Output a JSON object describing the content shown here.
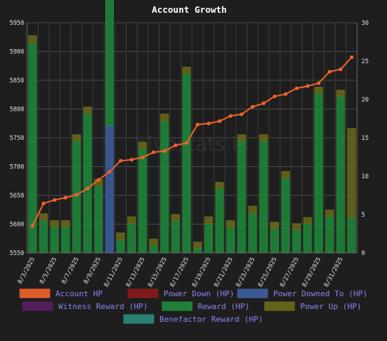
{
  "chart_data": {
    "type": "bar",
    "title": "Account Growth",
    "watermark": "hivestats.io",
    "dates": [
      "8/3/2025",
      "8/4/2025",
      "8/5/2025",
      "8/6/2025",
      "8/7/2025",
      "8/8/2025",
      "8/9/2025",
      "8/10/2025",
      "8/11/2025",
      "8/12/2025",
      "8/13/2025",
      "8/14/2025",
      "8/15/2025",
      "8/16/2025",
      "8/17/2025",
      "8/18/2025",
      "8/19/2025",
      "8/20/2025",
      "8/21/2025",
      "8/22/2025",
      "8/23/2025",
      "8/24/2025",
      "8/25/2025",
      "8/26/2025",
      "8/27/2025",
      "8/28/2025",
      "8/29/2025",
      "8/30/2025",
      "8/31/2025",
      "9/1/2025"
    ],
    "x_tick_labels": [
      "8/3/2025",
      "",
      "8/5/2025",
      "",
      "8/7/2025",
      "",
      "8/9/2025",
      "",
      "8/11/2025",
      "",
      "8/13/2025",
      "",
      "8/15/2025",
      "",
      "8/17/2025",
      "",
      "8/19/2025",
      "",
      "8/21/2025",
      "",
      "8/23/2025",
      "",
      "8/25/2025",
      "",
      "8/27/2025",
      "",
      "8/29/2025",
      "",
      "8/31/2025",
      ""
    ],
    "y_left": {
      "min": 5550,
      "max": 5950,
      "ticks": [
        5550,
        5600,
        5650,
        5700,
        5750,
        5800,
        5850,
        5900,
        5950
      ]
    },
    "y_right": {
      "min": 0,
      "max": 30,
      "ticks": [
        0,
        5,
        10,
        15,
        20,
        25,
        30
      ]
    },
    "grid": true,
    "legend_position": "bottom",
    "series": [
      {
        "name": "Account HP",
        "type": "line",
        "axis": "left",
        "color": "#f0622a",
        "values": [
          5597,
          5636,
          5642,
          5646,
          5651,
          5662,
          5677,
          5691,
          5710,
          5712,
          5716,
          5725,
          5727,
          5737,
          5741,
          5773,
          5775,
          5779,
          5788,
          5791,
          5804,
          5810,
          5822,
          5826,
          5836,
          5840,
          5845,
          5865,
          5869,
          5890
        ]
      },
      {
        "name": "Power Down (HP)",
        "type": "bar",
        "axis": "right",
        "color": "#8b1a1a",
        "values": [
          0,
          0,
          0,
          0,
          0,
          0,
          0,
          0,
          0,
          0,
          0,
          0,
          0,
          0,
          0,
          0,
          0,
          0,
          0,
          0,
          0,
          0,
          0,
          0,
          0,
          0,
          0,
          0,
          0,
          0
        ]
      },
      {
        "name": "Power Downed To (HP)",
        "type": "bar",
        "axis": "right",
        "color": "#3d5fa0",
        "values": [
          0,
          0,
          0,
          0,
          0,
          0,
          0,
          16.6,
          0,
          0,
          0,
          0,
          0,
          0,
          0,
          0,
          0,
          0,
          0,
          0,
          0,
          0,
          0,
          0,
          0,
          0,
          0,
          0,
          0,
          0
        ]
      },
      {
        "name": "Witness Reward (HP)",
        "type": "bar",
        "axis": "right",
        "color": "#5a1e5e",
        "values": [
          0,
          0,
          0,
          0,
          0,
          0,
          0,
          0,
          0,
          0,
          0,
          0,
          0,
          0,
          0,
          0,
          0,
          0,
          0,
          0,
          0,
          0,
          0,
          0,
          0,
          0,
          0,
          0,
          0,
          0
        ]
      },
      {
        "name": "Reward (HP)",
        "type": "bar",
        "axis": "right",
        "color": "#1f8a3a",
        "values": [
          27.4,
          4.2,
          3.4,
          3.4,
          14.6,
          18.2,
          8.8,
          19.6,
          1.7,
          3.8,
          13.6,
          1.0,
          17.2,
          4.2,
          23.4,
          0.6,
          3.8,
          8.4,
          3.4,
          14.6,
          5.2,
          14.6,
          3.2,
          9.8,
          3.0,
          3.8,
          20.8,
          4.8,
          20.4,
          4.6
        ]
      },
      {
        "name": "Power Up (HP)",
        "type": "bar",
        "axis": "right",
        "color": "#6a6a1a",
        "values": [
          0.9,
          0.9,
          0.8,
          0.8,
          0.8,
          0.8,
          0.8,
          0.8,
          0.9,
          0.9,
          0.8,
          0.8,
          0.9,
          0.8,
          0.8,
          0.8,
          0.9,
          0.8,
          0.8,
          0.8,
          0.9,
          0.8,
          0.8,
          0.8,
          0.8,
          0.8,
          0.8,
          0.8,
          0.8,
          11.6
        ]
      },
      {
        "name": "Benefactor Reward (HP)",
        "type": "bar",
        "axis": "right",
        "color": "#2a8a7a",
        "values": [
          0,
          0,
          0,
          0,
          0,
          0,
          0,
          0,
          0,
          0,
          0,
          0,
          0,
          0,
          0,
          0,
          0,
          0,
          0,
          0,
          0,
          0,
          0,
          0,
          0,
          0,
          0,
          0,
          0,
          0
        ]
      }
    ]
  }
}
